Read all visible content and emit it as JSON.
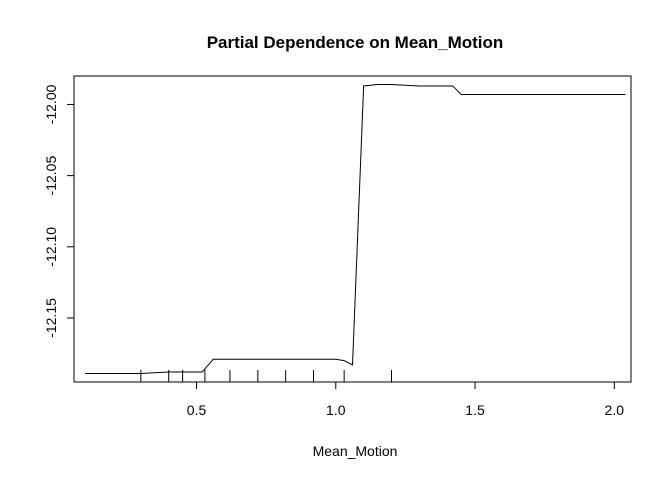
{
  "chart_data": {
    "type": "line",
    "title": "Partial Dependence on  Mean_Motion",
    "xlabel": "Mean_Motion",
    "ylabel": "",
    "xlim": [
      0.06,
      2.06
    ],
    "ylim": [
      -12.195,
      -11.98
    ],
    "grid": false,
    "x_ticks": [
      0.5,
      1.0,
      1.5,
      2.0
    ],
    "x_tick_labels": [
      "0.5",
      "1.0",
      "1.5",
      "2.0"
    ],
    "y_ticks": [
      -12.0,
      -12.05,
      -12.1,
      -12.15
    ],
    "y_tick_labels": [
      "-12.00",
      "-12.05",
      "-12.10",
      "-12.15"
    ],
    "series": [
      {
        "x": [
          0.1,
          0.3,
          0.4,
          0.52,
          0.56,
          0.6,
          0.8,
          1.0,
          1.03,
          1.06,
          1.1,
          1.15,
          1.2,
          1.3,
          1.42,
          1.45,
          1.6,
          1.8,
          2.04
        ],
        "y": [
          -12.189,
          -12.189,
          -12.188,
          -12.188,
          -12.179,
          -12.179,
          -12.179,
          -12.179,
          -12.18,
          -12.183,
          -11.987,
          -11.986,
          -11.986,
          -11.987,
          -11.987,
          -11.993,
          -11.993,
          -11.993,
          -11.993
        ]
      }
    ],
    "rug": [
      0.3,
      0.4,
      0.45,
      0.53,
      0.62,
      0.72,
      0.82,
      0.92,
      1.03,
      1.2
    ]
  }
}
